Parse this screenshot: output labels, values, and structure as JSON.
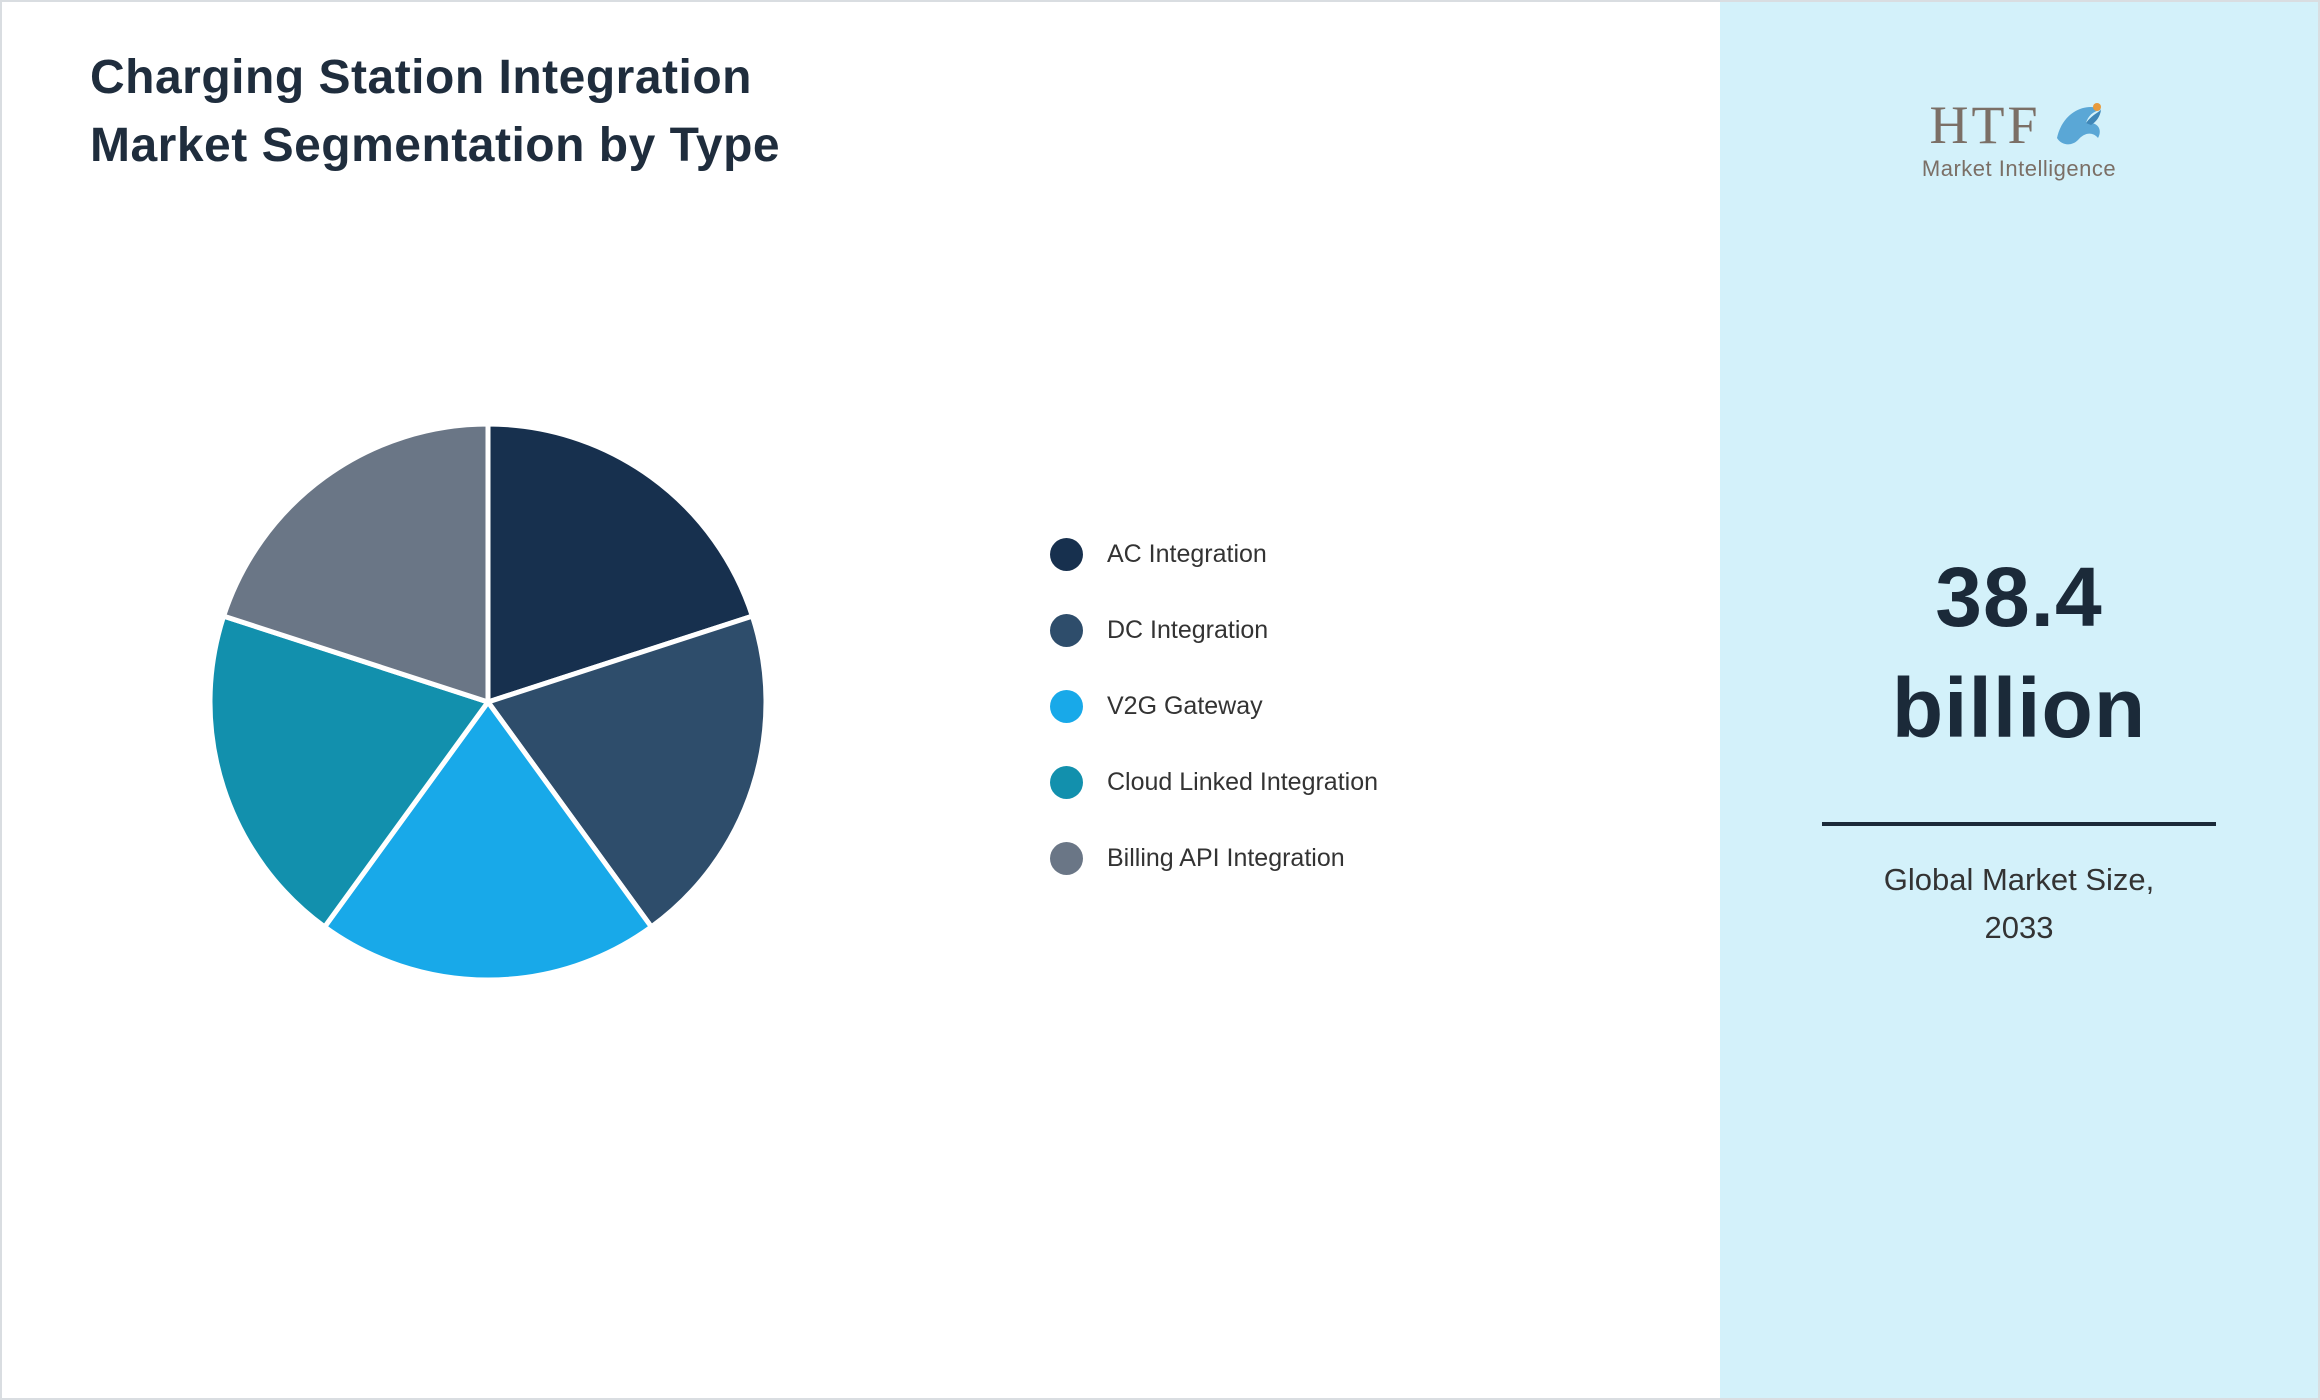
{
  "page": {
    "title_line1": "Charging Station Integration",
    "title_line2": "Market Segmentation by Type"
  },
  "chart_data": {
    "type": "pie",
    "title": "Charging Station Integration Market Segmentation by Type",
    "labels": [
      "AC Integration",
      "DC Integration",
      "V2G Gateway",
      "Cloud Linked Integration",
      "Billing API Integration"
    ],
    "values": [
      20,
      20,
      20,
      20,
      20
    ],
    "unit": "percent (estimated, slices approximately equal)",
    "colors": [
      "#17304e",
      "#2e4d6b",
      "#18a9e9",
      "#1290ad",
      "#6a7686"
    ],
    "start_angle_deg": 0,
    "direction": "clockwise",
    "legend_position": "right",
    "slice_border_color": "#ffffff"
  },
  "sidebar": {
    "background": "#d3f1fa",
    "logo": {
      "brand": "HTF",
      "tagline": "Market Intelligence"
    },
    "market_size_value": "38.4",
    "market_size_unit": "billion",
    "caption_line1": "Global Market Size,",
    "caption_line2": "2033"
  }
}
